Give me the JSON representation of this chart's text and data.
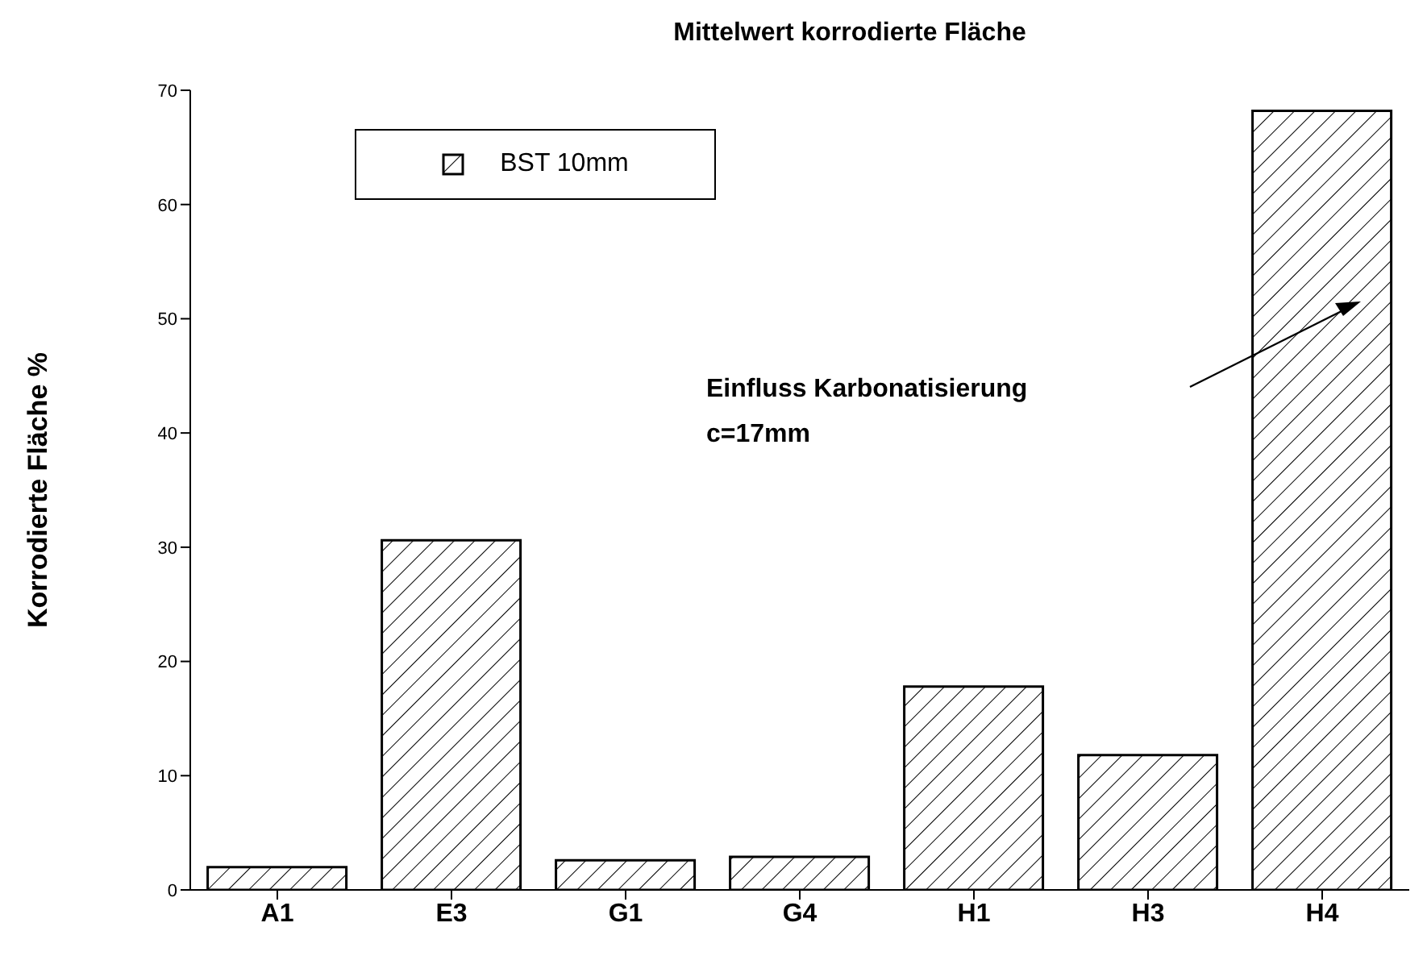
{
  "chart_data": {
    "type": "bar",
    "title": "Mittelwert korrodierte Fläche",
    "ylabel": "Korrodierte Fläche %",
    "categories": [
      "A1",
      "E3",
      "G1",
      "G4",
      "H1",
      "H3",
      "H4"
    ],
    "series": [
      {
        "name": "BST 10mm",
        "color": "#000000",
        "values": [
          2.0,
          30.6,
          2.6,
          2.9,
          17.8,
          11.8,
          68.2
        ]
      }
    ],
    "ylim": [
      0,
      70
    ],
    "yticks": [
      0,
      10,
      20,
      30,
      40,
      50,
      60,
      70
    ],
    "legend": "top left",
    "annotations": [
      "Einfluss Karbonatisierung\nc=17mm"
    ]
  }
}
